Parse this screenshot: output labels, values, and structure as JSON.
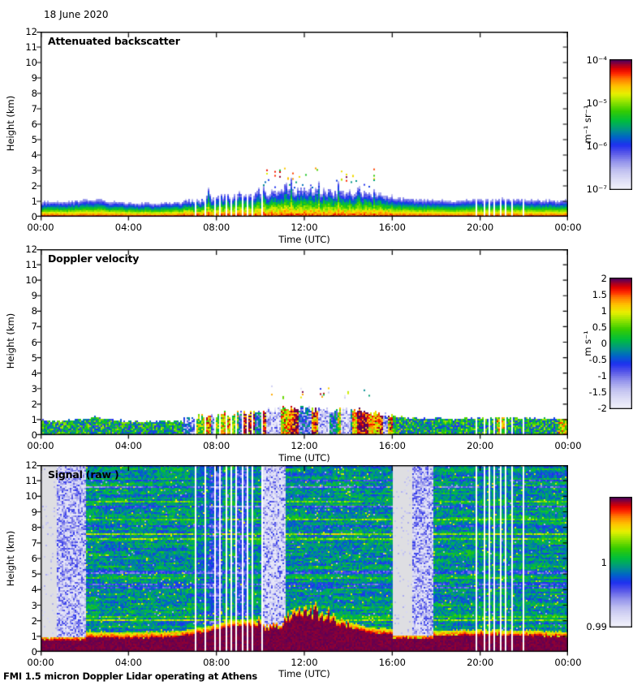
{
  "figure": {
    "date": "18 June 2020",
    "footer": "FMI 1.5 micron Doppler Lidar operating at Athens",
    "background": "#FFFFFF",
    "text_color": "#000000"
  },
  "data_gap_lines_hours": [
    7.08,
    7.5,
    7.92,
    8.17,
    8.42,
    8.67,
    8.92,
    9.17,
    9.42,
    9.67,
    10.08,
    19.83,
    20.17,
    20.42,
    20.67,
    20.92,
    21.17,
    21.47,
    21.95
  ],
  "colormap": {
    "gap_color": "#FFFFFF",
    "gray_fill": "#DEDEE2",
    "stops": [
      [
        0,
        "#F0F0FA"
      ],
      [
        0.07,
        "#DCDCF6"
      ],
      [
        0.14,
        "#C0C0F0"
      ],
      [
        0.21,
        "#9292EC"
      ],
      [
        0.28,
        "#5454E8"
      ],
      [
        0.34,
        "#1E30F0"
      ],
      [
        0.4,
        "#0064C8"
      ],
      [
        0.46,
        "#009488"
      ],
      [
        0.53,
        "#00BE3C"
      ],
      [
        0.61,
        "#38CC00"
      ],
      [
        0.68,
        "#94E400"
      ],
      [
        0.74,
        "#E6F000"
      ],
      [
        0.8,
        "#FFC400"
      ],
      [
        0.86,
        "#FF7800"
      ],
      [
        0.9,
        "#FF2800"
      ],
      [
        0.94,
        "#DC0000"
      ],
      [
        0.97,
        "#A00028"
      ],
      [
        1,
        "#5C0056"
      ]
    ]
  },
  "chart_data": [
    {
      "type": "heatmap",
      "kind": "backscatter",
      "title": "Attenuated backscatter",
      "xlabel": "Time (UTC)",
      "ylabel": "Height (km)",
      "x_range_hours": [
        0,
        24
      ],
      "x_ticks": [
        "00:00",
        "04:00",
        "08:00",
        "12:00",
        "16:00",
        "20:00",
        "00:00"
      ],
      "y_range_km": [
        0,
        12
      ],
      "y_ticks": [
        "0",
        "1",
        "2",
        "3",
        "4",
        "5",
        "6",
        "7",
        "8",
        "9",
        "10",
        "11",
        "12"
      ],
      "colorbar": {
        "scale": "log10",
        "min": 1e-07,
        "max": 0.0001,
        "unit": "m⁻¹ sr⁻¹",
        "ticks": [
          {
            "label": "10⁻⁴",
            "pos": 1
          },
          {
            "label": "10⁻⁵",
            "pos": 0.6667
          },
          {
            "label": "10⁻⁶",
            "pos": 0.3333
          },
          {
            "label": "10⁻⁷",
            "pos": 0
          }
        ]
      },
      "layer_top_km": {
        "hours": [
          0,
          1,
          2,
          2.5,
          3,
          4,
          5,
          6,
          6.5,
          7,
          8,
          9,
          10,
          11,
          12,
          13,
          14,
          15,
          15.5,
          16,
          17,
          18,
          19,
          20,
          21,
          22,
          23,
          24
        ],
        "top": [
          0.9,
          0.9,
          1.0,
          1.1,
          0.95,
          0.85,
          0.8,
          0.85,
          0.9,
          1.05,
          1.3,
          1.4,
          1.5,
          1.6,
          1.65,
          1.6,
          1.55,
          1.45,
          1.3,
          1.15,
          1.05,
          1.0,
          1.0,
          1.05,
          1.1,
          1.05,
          1.0,
          1.0
        ]
      },
      "value_profile_log10": {
        "surface": -4.3,
        "layer_top": -6.5
      },
      "cloud_fragments": {
        "from_hour": 9.8,
        "to_hour": 15.2,
        "base_km": 2.25,
        "top_km": 3.1
      }
    },
    {
      "type": "heatmap",
      "kind": "velocity",
      "title": "Doppler velocity",
      "xlabel": "Time (UTC)",
      "ylabel": "Height (km)",
      "x_range_hours": [
        0,
        24
      ],
      "x_ticks": [
        "00:00",
        "04:00",
        "08:00",
        "12:00",
        "16:00",
        "20:00",
        "00:00"
      ],
      "y_range_km": [
        0,
        12
      ],
      "y_ticks": [
        "0",
        "1",
        "2",
        "3",
        "4",
        "5",
        "6",
        "7",
        "8",
        "9",
        "10",
        "11",
        "12"
      ],
      "colorbar": {
        "scale": "linear",
        "min": -2,
        "max": 2,
        "unit": "m s⁻¹",
        "ticks": [
          {
            "label": "2",
            "pos": 1
          },
          {
            "label": "1.5",
            "pos": 0.875
          },
          {
            "label": "1",
            "pos": 0.75
          },
          {
            "label": "0.5",
            "pos": 0.625
          },
          {
            "label": "0",
            "pos": 0.5
          },
          {
            "label": "-0.5",
            "pos": 0.375
          },
          {
            "label": "-1",
            "pos": 0.25
          },
          {
            "label": "-1.5",
            "pos": 0.125
          },
          {
            "label": "-2",
            "pos": 0
          }
        ]
      },
      "layer_top_km": {
        "hours": [
          0,
          1,
          2,
          2.5,
          3,
          4,
          5,
          6,
          6.5,
          7,
          8,
          9,
          10,
          11,
          12,
          13,
          14,
          15,
          15.5,
          16,
          17,
          18,
          19,
          20,
          21,
          22,
          23,
          24
        ],
        "top": [
          0.9,
          0.9,
          1.0,
          1.1,
          0.95,
          0.85,
          0.8,
          0.85,
          0.9,
          1.05,
          1.3,
          1.4,
          1.5,
          1.6,
          1.65,
          1.6,
          1.55,
          1.45,
          1.3,
          1.15,
          1.05,
          1.0,
          1.0,
          1.05,
          1.1,
          1.05,
          1.0,
          1.0
        ]
      },
      "night_velocity_range_ms": [
        -0.8,
        0.8
      ],
      "convection": {
        "from_hour": 6.5,
        "to_hour": 16,
        "updraft_max_ms": 2,
        "downdraft_max_ms": -2
      },
      "cloud_fragments": {
        "from_hour": 9.9,
        "to_hour": 15.2,
        "base_km": 2.25,
        "top_km": 3.1
      }
    },
    {
      "type": "heatmap",
      "kind": "signal",
      "title": "Signal (raw )",
      "xlabel": "Time (UTC)",
      "ylabel": "Height (km)",
      "x_range_hours": [
        0,
        24
      ],
      "x_ticks": [
        "00:00",
        "04:00",
        "08:00",
        "12:00",
        "16:00",
        "20:00",
        "00:00"
      ],
      "y_range_km": [
        0,
        12
      ],
      "y_ticks": [
        "0",
        "1",
        "2",
        "3",
        "4",
        "5",
        "6",
        "7",
        "8",
        "9",
        "10",
        "11",
        "12"
      ],
      "colorbar": {
        "scale": "linear",
        "min": 0.99,
        "max": 1.01,
        "unit": "",
        "ticks": [
          {
            "label": "1",
            "pos": 0.5
          },
          {
            "label": "0.99",
            "pos": 0
          }
        ]
      },
      "background_signal": 1.0,
      "saturated_layer_top_km": {
        "hours": [
          0,
          2,
          4,
          6,
          7,
          8,
          9,
          10,
          10.5,
          11,
          11.5,
          12,
          12.5,
          13,
          13.5,
          14,
          15,
          16,
          17,
          18,
          19,
          20,
          21,
          22,
          23,
          24
        ],
        "top": [
          0.85,
          0.9,
          0.85,
          0.9,
          1.1,
          1.4,
          1.6,
          1.75,
          1.9,
          2.0,
          2.1,
          2.0,
          2.1,
          1.95,
          1.8,
          1.5,
          1.2,
          1.05,
          1.0,
          0.95,
          1.0,
          1.05,
          1.0,
          1.0,
          0.95,
          0.9
        ]
      },
      "low_signal_columns": [
        {
          "from_hour": 0,
          "to_hour": 0.72,
          "style": "gray"
        },
        {
          "from_hour": 0.72,
          "to_hour": 2.08,
          "style": "blue"
        },
        {
          "from_hour": 10.15,
          "to_hour": 11.15,
          "style": "blue-light"
        },
        {
          "from_hour": 16.05,
          "to_hour": 16.9,
          "style": "gray"
        },
        {
          "from_hour": 16.9,
          "to_hour": 17.85,
          "style": "blue"
        }
      ]
    }
  ]
}
